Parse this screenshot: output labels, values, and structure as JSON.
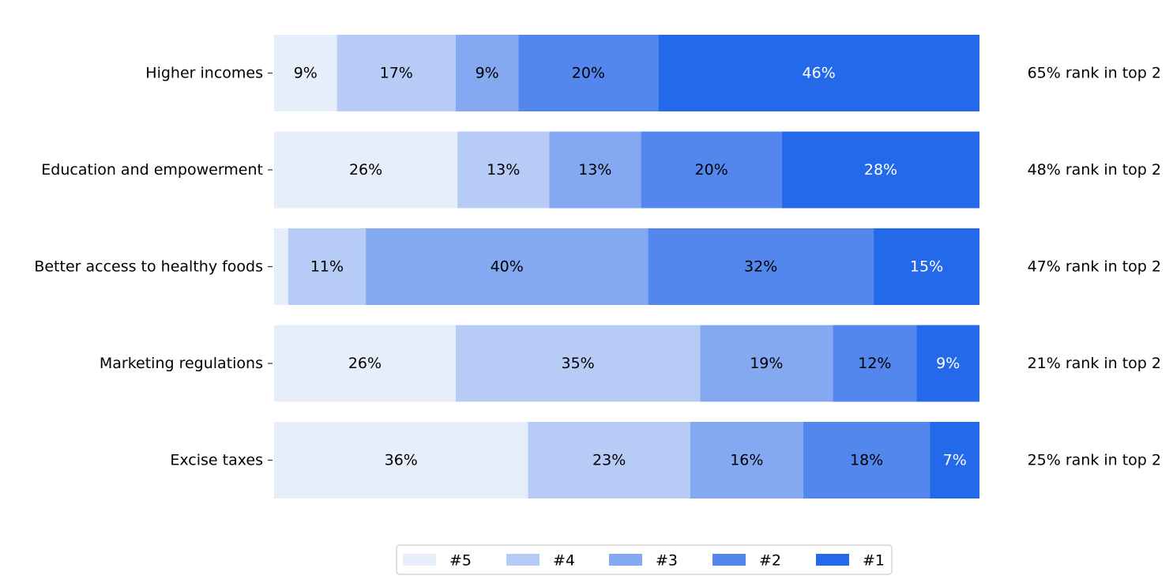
{
  "chart_data": {
    "type": "bar",
    "orientation": "horizontal",
    "stacked": true,
    "normalized": true,
    "categories": [
      "Higher incomes",
      "Education and empowerment",
      "Better access to healthy foods",
      "Marketing regulations",
      "Excise taxes"
    ],
    "series": [
      {
        "name": "#5",
        "color": "#e7eefb",
        "values": [
          9,
          26,
          2,
          26,
          36
        ],
        "labels": [
          "9%",
          "26%",
          "",
          "26%",
          "36%"
        ]
      },
      {
        "name": "#4",
        "color": "#b6ccf6",
        "values": [
          17,
          13,
          11,
          35,
          23
        ],
        "labels": [
          "17%",
          "13%",
          "11%",
          "35%",
          "23%"
        ]
      },
      {
        "name": "#3",
        "color": "#85a9f1",
        "values": [
          9,
          13,
          40,
          19,
          16
        ],
        "labels": [
          "9%",
          "13%",
          "40%",
          "19%",
          "16%"
        ]
      },
      {
        "name": "#2",
        "color": "#5487ed",
        "values": [
          20,
          20,
          32,
          12,
          18
        ],
        "labels": [
          "20%",
          "20%",
          "32%",
          "12%",
          "18%"
        ]
      },
      {
        "name": "#1",
        "color": "#2469e9",
        "values": [
          46,
          28,
          15,
          9,
          7
        ],
        "labels": [
          "46%",
          "28%",
          "15%",
          "9%",
          "7%"
        ]
      }
    ],
    "annotations": [
      "65% rank in top 2",
      "48% rank in top 2",
      "47% rank in top 2",
      "21% rank in top 2",
      "25% rank in top 2"
    ],
    "legend": {
      "placement": "bottom-center",
      "order": [
        "#5",
        "#4",
        "#3",
        "#2",
        "#1"
      ]
    },
    "grid": false
  }
}
